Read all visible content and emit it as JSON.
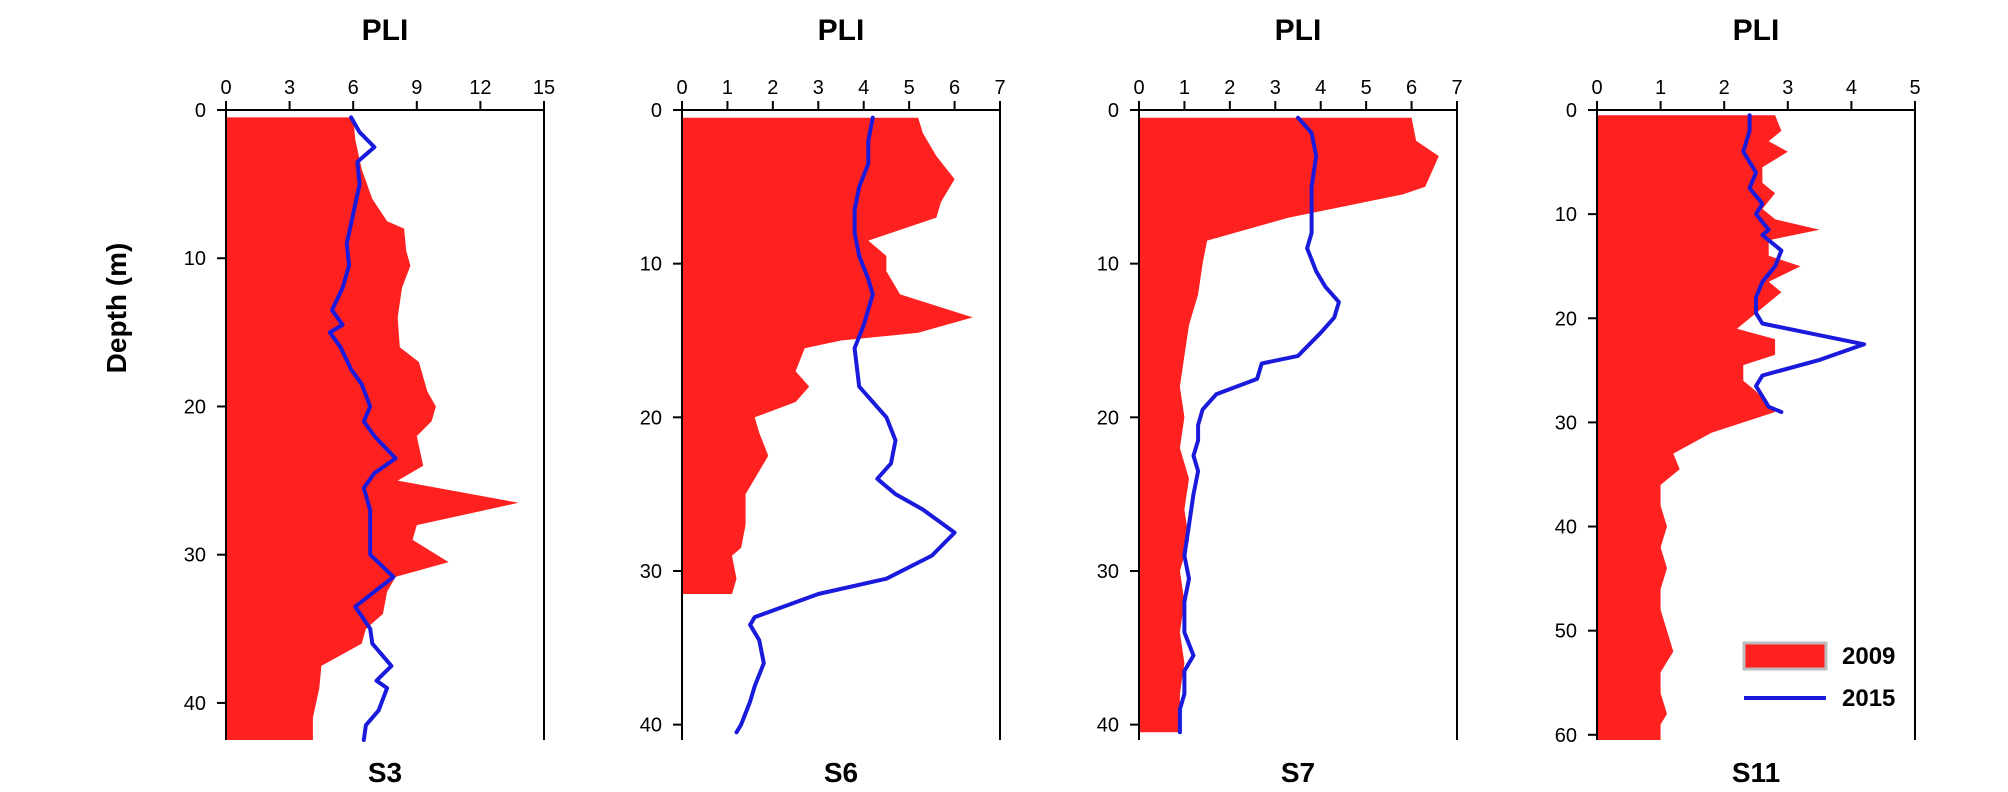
{
  "y_axis_label": "Depth (m)",
  "legend": [
    {
      "label": "2009",
      "kind": "area",
      "color": "#ff2020"
    },
    {
      "label": "2015",
      "kind": "line",
      "color": "#1a1adc"
    }
  ],
  "chart_data": [
    {
      "type": "area",
      "title": "PLI",
      "panel_label": "S3",
      "xlim": [
        0,
        15
      ],
      "xticks": [
        0,
        3,
        6,
        9,
        12,
        15
      ],
      "ylim": [
        0,
        42.5
      ],
      "yticks": [
        0,
        10,
        20,
        30,
        40
      ],
      "y_reversed": true,
      "series": [
        {
          "name": "2009",
          "type": "area",
          "color": "#ff2020",
          "fill_from": 0,
          "points": [
            [
              6.0,
              0.5
            ],
            [
              6.1,
              2
            ],
            [
              6.4,
              4
            ],
            [
              6.9,
              6
            ],
            [
              7.6,
              7.5
            ],
            [
              8.4,
              8
            ],
            [
              8.5,
              9.5
            ],
            [
              8.7,
              10.5
            ],
            [
              8.3,
              12
            ],
            [
              8.1,
              14
            ],
            [
              8.2,
              16
            ],
            [
              9.1,
              17
            ],
            [
              9.5,
              19
            ],
            [
              9.9,
              20
            ],
            [
              9.7,
              21
            ],
            [
              9.0,
              22
            ],
            [
              9.3,
              24
            ],
            [
              8.1,
              25
            ],
            [
              13.8,
              26.5
            ],
            [
              9.0,
              28
            ],
            [
              8.8,
              29
            ],
            [
              10.5,
              30.5
            ],
            [
              8.0,
              31.5
            ],
            [
              7.6,
              32.5
            ],
            [
              7.4,
              34
            ],
            [
              6.6,
              35
            ],
            [
              6.4,
              36
            ],
            [
              4.5,
              37.5
            ],
            [
              4.4,
              39
            ],
            [
              4.1,
              41
            ],
            [
              4.1,
              42.5
            ]
          ]
        },
        {
          "name": "2015",
          "type": "line",
          "color": "#1a1adc",
          "points": [
            [
              5.9,
              0.5
            ],
            [
              6.3,
              1.5
            ],
            [
              7.0,
              2.5
            ],
            [
              6.2,
              3.5
            ],
            [
              6.3,
              5
            ],
            [
              6.0,
              7
            ],
            [
              5.7,
              9
            ],
            [
              5.8,
              10.5
            ],
            [
              5.5,
              12
            ],
            [
              5.0,
              13.5
            ],
            [
              5.5,
              14.5
            ],
            [
              4.9,
              15
            ],
            [
              5.4,
              16
            ],
            [
              5.9,
              17.5
            ],
            [
              6.4,
              18.5
            ],
            [
              6.8,
              20
            ],
            [
              6.5,
              21
            ],
            [
              7.0,
              22
            ],
            [
              8.0,
              23.5
            ],
            [
              7.0,
              24.5
            ],
            [
              6.5,
              25.5
            ],
            [
              6.8,
              27
            ],
            [
              6.8,
              29
            ],
            [
              6.8,
              30
            ],
            [
              7.9,
              31.5
            ],
            [
              6.1,
              33.5
            ],
            [
              6.8,
              35
            ],
            [
              6.9,
              36
            ],
            [
              7.8,
              37.5
            ],
            [
              7.1,
              38.5
            ],
            [
              7.6,
              39
            ],
            [
              7.2,
              40.5
            ],
            [
              6.6,
              41.5
            ],
            [
              6.5,
              42.5
            ]
          ]
        }
      ]
    },
    {
      "type": "area",
      "title": "PLI",
      "panel_label": "S6",
      "xlim": [
        0,
        7
      ],
      "xticks": [
        0,
        1,
        2,
        3,
        4,
        5,
        6,
        7
      ],
      "ylim": [
        0,
        41
      ],
      "yticks": [
        0,
        10,
        20,
        30,
        40
      ],
      "y_reversed": true,
      "series": [
        {
          "name": "2009",
          "type": "area",
          "color": "#ff2020",
          "fill_from": 0,
          "points": [
            [
              5.2,
              0.5
            ],
            [
              5.3,
              1.5
            ],
            [
              5.6,
              3
            ],
            [
              6.0,
              4.5
            ],
            [
              5.7,
              6
            ],
            [
              5.6,
              7
            ],
            [
              4.1,
              8.5
            ],
            [
              4.5,
              9.5
            ],
            [
              4.5,
              10.5
            ],
            [
              4.8,
              12
            ],
            [
              6.4,
              13.5
            ],
            [
              5.2,
              14.5
            ],
            [
              3.5,
              15
            ],
            [
              2.7,
              15.5
            ],
            [
              2.5,
              17
            ],
            [
              2.8,
              18
            ],
            [
              2.5,
              19
            ],
            [
              1.6,
              20
            ],
            [
              1.7,
              21
            ],
            [
              1.9,
              22.5
            ],
            [
              1.7,
              23.5
            ],
            [
              1.4,
              25
            ],
            [
              1.4,
              27
            ],
            [
              1.3,
              28.5
            ],
            [
              1.1,
              29
            ],
            [
              1.2,
              30.5
            ],
            [
              1.1,
              31.5
            ]
          ]
        },
        {
          "name": "2015",
          "type": "line",
          "color": "#1a1adc",
          "points": [
            [
              4.2,
              0.5
            ],
            [
              4.1,
              2
            ],
            [
              4.1,
              3.5
            ],
            [
              3.9,
              5
            ],
            [
              3.8,
              6.5
            ],
            [
              3.8,
              8
            ],
            [
              3.9,
              9.5
            ],
            [
              4.1,
              11
            ],
            [
              4.2,
              12
            ],
            [
              4.0,
              14
            ],
            [
              3.8,
              15.5
            ],
            [
              3.9,
              18
            ],
            [
              4.5,
              20
            ],
            [
              4.7,
              21.5
            ],
            [
              4.6,
              23
            ],
            [
              4.3,
              24
            ],
            [
              4.7,
              25
            ],
            [
              5.3,
              26
            ],
            [
              6.0,
              27.5
            ],
            [
              5.5,
              29
            ],
            [
              4.5,
              30.5
            ],
            [
              3.0,
              31.5
            ],
            [
              1.6,
              33
            ],
            [
              1.5,
              33.5
            ],
            [
              1.7,
              34.5
            ],
            [
              1.8,
              36
            ],
            [
              1.6,
              37.5
            ],
            [
              1.5,
              38.5
            ],
            [
              1.3,
              40
            ],
            [
              1.2,
              40.5
            ]
          ]
        }
      ]
    },
    {
      "type": "area",
      "title": "PLI",
      "panel_label": "S7",
      "xlim": [
        0,
        7
      ],
      "xticks": [
        0,
        1,
        2,
        3,
        4,
        5,
        6,
        7
      ],
      "ylim": [
        0,
        41
      ],
      "yticks": [
        0,
        10,
        20,
        30,
        40
      ],
      "y_reversed": true,
      "series": [
        {
          "name": "2009",
          "type": "area",
          "color": "#ff2020",
          "fill_from": 0,
          "points": [
            [
              6.0,
              0.5
            ],
            [
              6.1,
              2
            ],
            [
              6.6,
              3
            ],
            [
              6.3,
              5
            ],
            [
              5.8,
              5.5
            ],
            [
              3.3,
              7
            ],
            [
              1.5,
              8.5
            ],
            [
              1.4,
              10
            ],
            [
              1.3,
              12
            ],
            [
              1.1,
              14
            ],
            [
              1.0,
              16
            ],
            [
              0.9,
              18
            ],
            [
              1.0,
              20
            ],
            [
              0.9,
              22
            ],
            [
              1.1,
              24
            ],
            [
              1.0,
              26
            ],
            [
              1.1,
              28
            ],
            [
              0.9,
              30
            ],
            [
              1.0,
              32
            ],
            [
              0.9,
              34
            ],
            [
              1.0,
              36
            ],
            [
              0.9,
              38
            ],
            [
              0.9,
              40.5
            ]
          ]
        },
        {
          "name": "2015",
          "type": "line",
          "color": "#1a1adc",
          "points": [
            [
              3.5,
              0.5
            ],
            [
              3.8,
              1.5
            ],
            [
              3.9,
              3
            ],
            [
              3.8,
              5
            ],
            [
              3.8,
              7
            ],
            [
              3.8,
              8
            ],
            [
              3.7,
              9
            ],
            [
              3.9,
              10.5
            ],
            [
              4.1,
              11.5
            ],
            [
              4.4,
              12.5
            ],
            [
              4.3,
              13.5
            ],
            [
              4.0,
              14.5
            ],
            [
              3.5,
              16
            ],
            [
              2.7,
              16.5
            ],
            [
              2.6,
              17.5
            ],
            [
              1.7,
              18.5
            ],
            [
              1.4,
              19.5
            ],
            [
              1.3,
              20.5
            ],
            [
              1.3,
              21.5
            ],
            [
              1.2,
              22.5
            ],
            [
              1.3,
              23.5
            ],
            [
              1.2,
              25
            ],
            [
              1.1,
              27
            ],
            [
              1.0,
              29
            ],
            [
              1.1,
              30.5
            ],
            [
              1.0,
              32
            ],
            [
              1.0,
              34
            ],
            [
              1.2,
              35.5
            ],
            [
              1.0,
              36.5
            ],
            [
              1.0,
              38
            ],
            [
              0.9,
              39
            ],
            [
              0.9,
              40.5
            ]
          ]
        }
      ]
    },
    {
      "type": "area",
      "title": "PLI",
      "panel_label": "S11",
      "xlim": [
        0,
        5
      ],
      "xticks": [
        0,
        1,
        2,
        3,
        4,
        5
      ],
      "ylim": [
        0,
        60.5
      ],
      "yticks": [
        0,
        10,
        20,
        30,
        40,
        50,
        60
      ],
      "y_reversed": true,
      "series": [
        {
          "name": "2009",
          "type": "area",
          "color": "#ff2020",
          "fill_from": 0,
          "points": [
            [
              2.8,
              0.5
            ],
            [
              2.9,
              2
            ],
            [
              2.7,
              3
            ],
            [
              3.0,
              4
            ],
            [
              2.6,
              5.5
            ],
            [
              2.6,
              7
            ],
            [
              2.8,
              8
            ],
            [
              2.6,
              9.5
            ],
            [
              2.8,
              10.5
            ],
            [
              3.5,
              11.5
            ],
            [
              2.7,
              12.5
            ],
            [
              2.7,
              14
            ],
            [
              3.2,
              15
            ],
            [
              2.7,
              16.5
            ],
            [
              2.9,
              17.5
            ],
            [
              2.5,
              19.5
            ],
            [
              2.2,
              21
            ],
            [
              2.8,
              22
            ],
            [
              2.8,
              23.5
            ],
            [
              2.3,
              24.5
            ],
            [
              2.3,
              26
            ],
            [
              2.5,
              27
            ],
            [
              2.8,
              29
            ],
            [
              1.8,
              31
            ],
            [
              1.2,
              33
            ],
            [
              1.3,
              34.5
            ],
            [
              1.0,
              36
            ],
            [
              1.0,
              38
            ],
            [
              1.1,
              40
            ],
            [
              1.0,
              42
            ],
            [
              1.1,
              44
            ],
            [
              1.0,
              46
            ],
            [
              1.0,
              48
            ],
            [
              1.1,
              50
            ],
            [
              1.2,
              52
            ],
            [
              1.0,
              54
            ],
            [
              1.0,
              56
            ],
            [
              1.1,
              58
            ],
            [
              1.0,
              59
            ],
            [
              1.0,
              60.5
            ]
          ]
        },
        {
          "name": "2015",
          "type": "line",
          "color": "#1a1adc",
          "points": [
            [
              2.4,
              0.5
            ],
            [
              2.4,
              2
            ],
            [
              2.3,
              4
            ],
            [
              2.5,
              6
            ],
            [
              2.4,
              7.5
            ],
            [
              2.6,
              9
            ],
            [
              2.5,
              10
            ],
            [
              2.7,
              11.5
            ],
            [
              2.6,
              12
            ],
            [
              2.9,
              13.5
            ],
            [
              2.8,
              15
            ],
            [
              2.6,
              16.5
            ],
            [
              2.5,
              18
            ],
            [
              2.5,
              19.5
            ],
            [
              2.6,
              20.5
            ],
            [
              3.4,
              21.5
            ],
            [
              4.2,
              22.5
            ],
            [
              3.5,
              24
            ],
            [
              2.6,
              25.5
            ],
            [
              2.5,
              26.5
            ],
            [
              2.6,
              27.5
            ],
            [
              2.7,
              28.5
            ],
            [
              2.9,
              29
            ]
          ]
        }
      ]
    }
  ]
}
